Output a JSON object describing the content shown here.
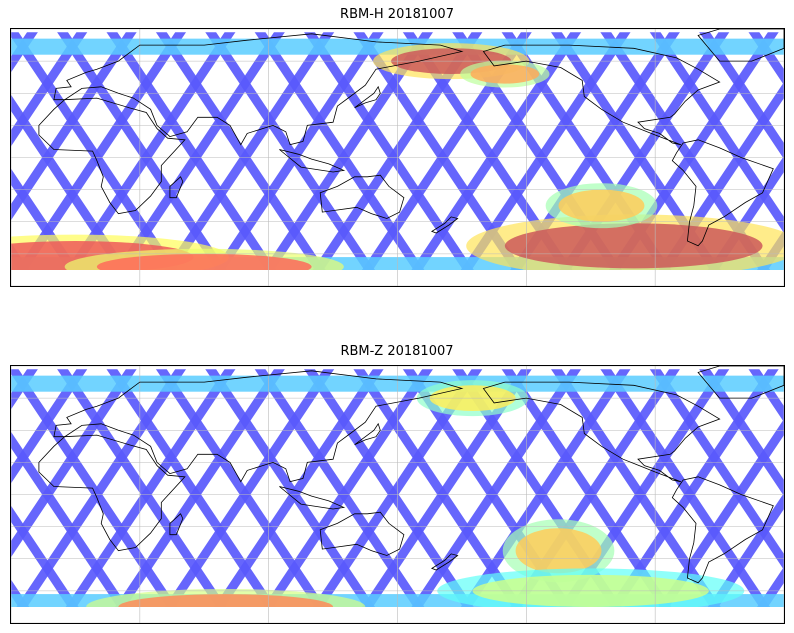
{
  "maps": [
    {
      "title": "RBM-H 20181007",
      "palette": "jet",
      "hotspots": [
        {
          "lon": 175,
          "lat": 60,
          "rx": 28,
          "ry": 8,
          "level": 0.95
        },
        {
          "lon": 200,
          "lat": 52,
          "rx": 16,
          "ry": 6,
          "level": 0.75
        },
        {
          "lon": 0,
          "lat": -62,
          "rx": 55,
          "ry": 10,
          "level": 0.9
        },
        {
          "lon": 60,
          "lat": -68,
          "rx": 50,
          "ry": 8,
          "level": 0.85
        },
        {
          "lon": 260,
          "lat": -55,
          "rx": 60,
          "ry": 14,
          "level": 0.95
        },
        {
          "lon": 245,
          "lat": -30,
          "rx": 20,
          "ry": 10,
          "level": 0.7
        }
      ]
    },
    {
      "title": "RBM-Z 20181007",
      "palette": "jet",
      "hotspots": [
        {
          "lon": 185,
          "lat": 60,
          "rx": 20,
          "ry": 8,
          "level": 0.65
        },
        {
          "lon": 70,
          "lat": -70,
          "rx": 50,
          "ry": 8,
          "level": 0.8
        },
        {
          "lon": 225,
          "lat": -35,
          "rx": 20,
          "ry": 14,
          "level": 0.7
        },
        {
          "lon": 240,
          "lat": -60,
          "rx": 55,
          "ry": 10,
          "level": 0.55
        }
      ]
    }
  ],
  "map_extent": {
    "lon_min": -30,
    "lon_max": 330,
    "lat_min": -80,
    "lat_max": 80
  },
  "gridlines": {
    "lon_step": 60,
    "lat_step": 20
  },
  "colors": {
    "low": "#5a5af0",
    "mid": "#4fd0f0",
    "high": "#f06050",
    "coast": "#000000",
    "grid": "#bbbbbb"
  }
}
